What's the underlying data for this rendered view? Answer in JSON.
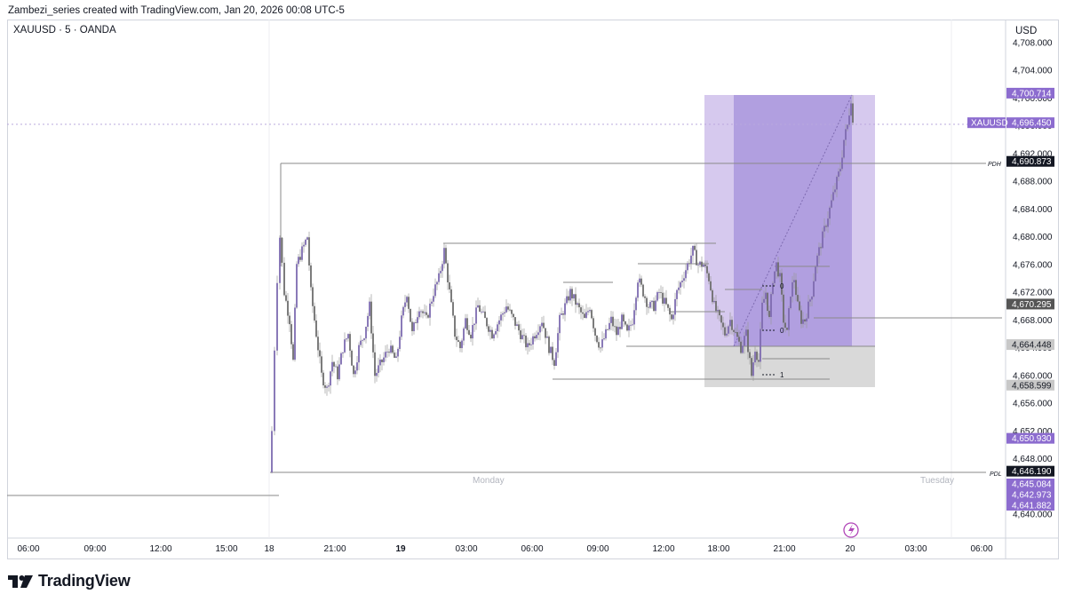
{
  "header": {
    "text": "Zambezi_series created with TradingView.com, Jan 20, 2026 00:08 UTC-5"
  },
  "symbol": {
    "text": "XAUUSD · 5 · OANDA"
  },
  "currency": "USD",
  "brand": {
    "name": "TradingView",
    "color": "#131722"
  },
  "colors": {
    "candle": "#7e6bb0",
    "zone_light": "#d6c9ee",
    "zone_dark": "#b19fe0",
    "zone_grey": "#d9d9d9",
    "badge_purple": "#8c6ccf",
    "badge_dark": "#131722",
    "badge_grey": "#555555",
    "badge_lightgrey": "#c8c8c8"
  },
  "chart_data": {
    "type": "candlestick",
    "title": "",
    "symbol": "XAUUSD",
    "timeframe": "5",
    "broker": "OANDA",
    "ylim": [
      4637,
      4711
    ],
    "y_ticks": [
      "4,640.000",
      "4,644.000",
      "4,648.000",
      "4,652.000",
      "4,656.000",
      "4,660.000",
      "4,664.000",
      "4,668.000",
      "4,672.000",
      "4,676.000",
      "4,680.000",
      "4,684.000",
      "4,688.000",
      "4,692.000",
      "4,696.000",
      "4,700.000",
      "4,704.000",
      "4,708.000"
    ],
    "y_tick_values": [
      4640,
      4644,
      4648,
      4652,
      4656,
      4660,
      4664,
      4668,
      4672,
      4676,
      4680,
      4684,
      4688,
      4692,
      4696,
      4700,
      4704,
      4708
    ],
    "x_ticks": [
      {
        "label": "06:00",
        "bold": false
      },
      {
        "label": "09:00",
        "bold": false
      },
      {
        "label": "12:00",
        "bold": false
      },
      {
        "label": "15:00",
        "bold": false
      },
      {
        "label": "18",
        "bold": false
      },
      {
        "label": "21:00",
        "bold": false
      },
      {
        "label": "19",
        "bold": true
      },
      {
        "label": "03:00",
        "bold": false
      },
      {
        "label": "06:00",
        "bold": false
      },
      {
        "label": "09:00",
        "bold": false
      },
      {
        "label": "12:00",
        "bold": false
      },
      {
        "label": "18:00",
        "bold": false
      },
      {
        "label": "21:00",
        "bold": false
      },
      {
        "label": "20",
        "bold": false
      },
      {
        "label": "03:00",
        "bold": false
      },
      {
        "label": "06:00",
        "bold": false
      }
    ],
    "session_labels": [
      "Monday",
      "Tuesday"
    ],
    "price_badges": [
      {
        "label": "4,700.714",
        "value": 4700.714,
        "style": "purple"
      },
      {
        "label": "4,696.450",
        "value": 4696.45,
        "style": "purple",
        "tag": "XAUUSD"
      },
      {
        "label": "4,690.873",
        "value": 4690.873,
        "style": "dark"
      },
      {
        "label": "4,670.295",
        "value": 4670.295,
        "style": "grey"
      },
      {
        "label": "4,664.448",
        "value": 4664.448,
        "style": "lightgrey"
      },
      {
        "label": "4,658.599",
        "value": 4658.599,
        "style": "lightgrey"
      },
      {
        "label": "4,650.930",
        "value": 4650.93,
        "style": "purple"
      },
      {
        "label": "4,646.190",
        "value": 4646.19,
        "style": "dark"
      },
      {
        "label": "4,645.084",
        "value": 4645.084,
        "style": "purple"
      },
      {
        "label": "4,642.973",
        "value": 4642.973,
        "style": "purple"
      },
      {
        "label": "4,641.882",
        "value": 4641.882,
        "style": "purple"
      }
    ],
    "levels": [
      {
        "name": "PDH",
        "value": 4690.873
      },
      {
        "name": "PDL",
        "value": 4646.19
      }
    ],
    "fib_labels": [
      "0",
      "0",
      "1"
    ],
    "long_position": {
      "entry": 4664.448,
      "target": 4700.714,
      "stop": 4658.599
    },
    "last_price": 4696.45
  }
}
